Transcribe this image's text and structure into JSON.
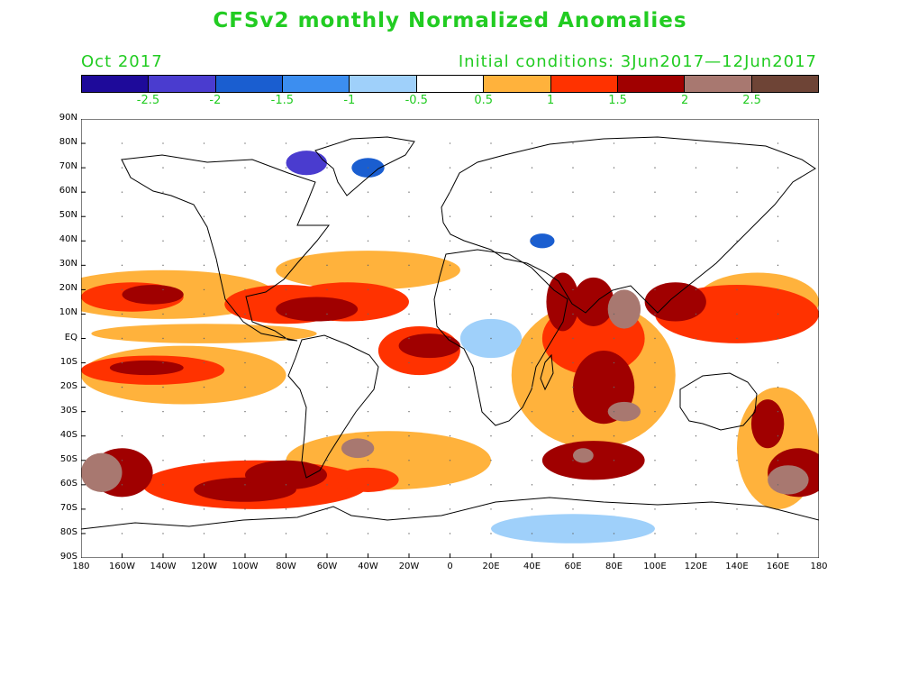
{
  "title": "CFSv2 monthly Normalized Anomalies",
  "month": "Oct 2017",
  "initial_conditions": "Initial conditions: 3Jun2017—12Jun2017",
  "text_color": "#22cc22",
  "colorbar": {
    "colors": [
      "#1e0a9a",
      "#4a3ccf",
      "#1a5ed0",
      "#3c8ef0",
      "#9fd0fa",
      "#ffffff",
      "#ffb23c",
      "#ff3200",
      "#a00000",
      "#a87870",
      "#6e4436"
    ],
    "labels": [
      "-2.5",
      "-2",
      "-1.5",
      "-1",
      "-0.5",
      "0.5",
      "1",
      "1.5",
      "2",
      "2.5"
    ]
  },
  "axes": {
    "lat_labels": [
      "90N",
      "80N",
      "70N",
      "60N",
      "50N",
      "40N",
      "30N",
      "20N",
      "10N",
      "EQ",
      "10S",
      "20S",
      "30S",
      "40S",
      "50S",
      "60S",
      "70S",
      "80S",
      "90S"
    ],
    "lon_labels": [
      "180",
      "160W",
      "140W",
      "120W",
      "100W",
      "80W",
      "60W",
      "40W",
      "20W",
      "0",
      "20E",
      "40E",
      "60E",
      "80E",
      "100E",
      "120E",
      "140E",
      "160E",
      "180"
    ]
  },
  "map_data": {
    "type": "heatmap",
    "units": "normalized anomaly",
    "regions": [
      {
        "lon": -155,
        "lat": 17,
        "rx": 25,
        "ry": 6,
        "level": 1
      },
      {
        "lon": -145,
        "lat": 18,
        "rx": 15,
        "ry": 4,
        "level": 2
      },
      {
        "lon": -140,
        "lat": 18,
        "rx": 55,
        "ry": 10,
        "level": 0
      },
      {
        "lon": -145,
        "lat": -13,
        "rx": 35,
        "ry": 6,
        "level": 1
      },
      {
        "lon": -148,
        "lat": -12,
        "rx": 18,
        "ry": 3,
        "level": 2
      },
      {
        "lon": -130,
        "lat": -15,
        "rx": 50,
        "ry": 12,
        "level": 0
      },
      {
        "lon": -120,
        "lat": 2,
        "rx": 55,
        "ry": 4,
        "level": 0
      },
      {
        "lon": -80,
        "lat": 14,
        "rx": 30,
        "ry": 8,
        "level": 1
      },
      {
        "lon": -65,
        "lat": 12,
        "rx": 20,
        "ry": 5,
        "level": 2
      },
      {
        "lon": -50,
        "lat": 15,
        "rx": 30,
        "ry": 8,
        "level": 1
      },
      {
        "lon": -10,
        "lat": -3,
        "rx": 15,
        "ry": 5,
        "level": 2
      },
      {
        "lon": -15,
        "lat": -5,
        "rx": 20,
        "ry": 10,
        "level": 1
      },
      {
        "lon": -40,
        "lat": 28,
        "rx": 45,
        "ry": 8,
        "level": 0
      },
      {
        "lon": -160,
        "lat": -55,
        "rx": 15,
        "ry": 10,
        "level": 2
      },
      {
        "lon": -170,
        "lat": -55,
        "rx": 10,
        "ry": 8,
        "level": 3
      },
      {
        "lon": -100,
        "lat": -62,
        "rx": 25,
        "ry": 5,
        "level": 2
      },
      {
        "lon": -80,
        "lat": -56,
        "rx": 20,
        "ry": 6,
        "level": 2
      },
      {
        "lon": -95,
        "lat": -60,
        "rx": 55,
        "ry": 10,
        "level": 1
      },
      {
        "lon": -45,
        "lat": -45,
        "rx": 8,
        "ry": 4,
        "level": 3
      },
      {
        "lon": -40,
        "lat": -58,
        "rx": 15,
        "ry": 5,
        "level": 1
      },
      {
        "lon": -30,
        "lat": -50,
        "rx": 50,
        "ry": 12,
        "level": 0
      },
      {
        "lon": 55,
        "lat": 15,
        "rx": 8,
        "ry": 12,
        "level": 2
      },
      {
        "lon": 70,
        "lat": 15,
        "rx": 10,
        "ry": 10,
        "level": 2
      },
      {
        "lon": 85,
        "lat": 12,
        "rx": 8,
        "ry": 8,
        "level": 3
      },
      {
        "lon": 70,
        "lat": 0,
        "rx": 25,
        "ry": 15,
        "level": 1
      },
      {
        "lon": 75,
        "lat": -20,
        "rx": 15,
        "ry": 15,
        "level": 2
      },
      {
        "lon": 85,
        "lat": -30,
        "rx": 8,
        "ry": 4,
        "level": 3
      },
      {
        "lon": 70,
        "lat": -15,
        "rx": 40,
        "ry": 30,
        "level": 0
      },
      {
        "lon": 110,
        "lat": 15,
        "rx": 15,
        "ry": 8,
        "level": 2
      },
      {
        "lon": 140,
        "lat": 10,
        "rx": 40,
        "ry": 12,
        "level": 1
      },
      {
        "lon": 150,
        "lat": 15,
        "rx": 30,
        "ry": 12,
        "level": 0
      },
      {
        "lon": 70,
        "lat": -50,
        "rx": 25,
        "ry": 8,
        "level": 2
      },
      {
        "lon": 65,
        "lat": -48,
        "rx": 5,
        "ry": 3,
        "level": 3
      },
      {
        "lon": 170,
        "lat": -55,
        "rx": 15,
        "ry": 10,
        "level": 2
      },
      {
        "lon": 165,
        "lat": -58,
        "rx": 10,
        "ry": 6,
        "level": 3
      },
      {
        "lon": 155,
        "lat": -35,
        "rx": 8,
        "ry": 10,
        "level": 2
      },
      {
        "lon": 160,
        "lat": -45,
        "rx": 20,
        "ry": 25,
        "level": 0
      },
      {
        "lon": -70,
        "lat": 72,
        "rx": 10,
        "ry": 5,
        "level": -3
      },
      {
        "lon": -40,
        "lat": 70,
        "rx": 8,
        "ry": 4,
        "level": -2
      },
      {
        "lon": 20,
        "lat": 0,
        "rx": 15,
        "ry": 8,
        "level": -1
      },
      {
        "lon": 45,
        "lat": 40,
        "rx": 6,
        "ry": 3,
        "level": -2
      },
      {
        "lon": 60,
        "lat": -78,
        "rx": 40,
        "ry": 6,
        "level": -1
      }
    ]
  }
}
